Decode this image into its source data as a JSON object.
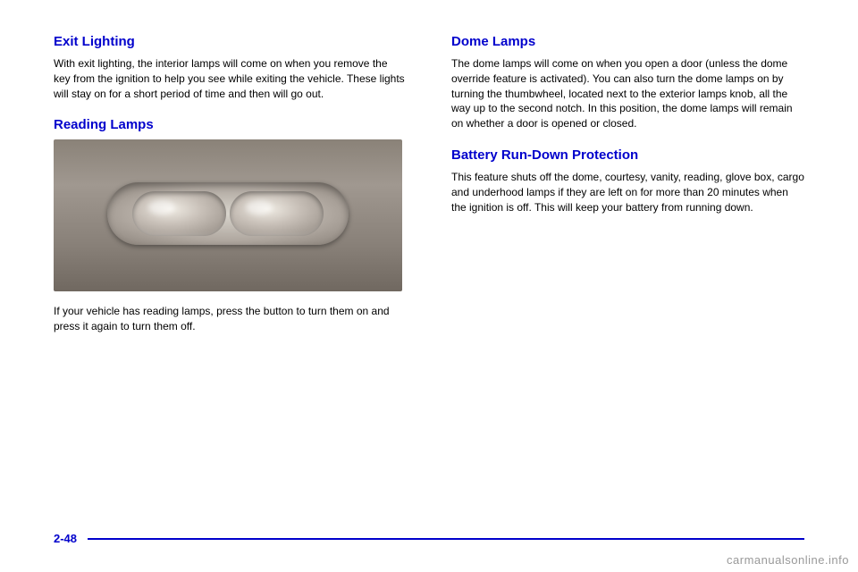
{
  "left_column": {
    "section1": {
      "heading": "Exit Lighting",
      "body": "With exit lighting, the interior lamps will come on when you remove the key from the ignition to help you see while exiting the vehicle. These lights will stay on for a short period of time and then will go out."
    },
    "section2": {
      "heading": "Reading Lamps",
      "body": "If your vehicle has reading lamps, press the button to turn them on and press it again to turn them off."
    }
  },
  "right_column": {
    "section1": {
      "heading": "Dome Lamps",
      "body": "The dome lamps will come on when you open a door (unless the dome override feature is activated). You can also turn the dome lamps on by turning the thumbwheel, located next to the exterior lamps knob, all the way up to the second notch. In this position, the dome lamps will remain on whether a door is opened or closed."
    },
    "section2": {
      "heading": "Battery Run-Down Protection",
      "body": "This feature shuts off the dome, courtesy, vanity, reading, glove box, cargo and underhood lamps if they are left on for more than 20 minutes when the ignition is off. This will keep your battery from running down."
    }
  },
  "footer": {
    "page_number": "2-48",
    "watermark": "carmanualsonline.info"
  }
}
